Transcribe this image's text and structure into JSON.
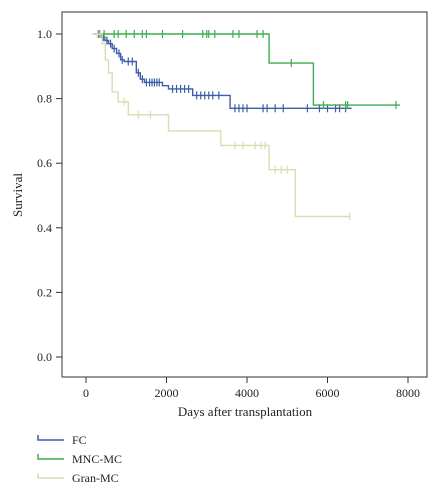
{
  "chart_data": {
    "type": "line",
    "subtype": "kaplan-meier",
    "title": "",
    "xlabel": "Days after transplantation",
    "ylabel": "Survival",
    "xlim": [
      0,
      8000
    ],
    "ylim": [
      0.0,
      1.0
    ],
    "xticks": [
      0,
      2000,
      4000,
      6000,
      8000
    ],
    "xtick_labels": [
      "0",
      "2000",
      "4000",
      "6000",
      "8000"
    ],
    "yticks": [
      0.0,
      0.2,
      0.4,
      0.6,
      0.8,
      1.0
    ],
    "ytick_labels": [
      "0.0",
      "0.2",
      "0.4",
      "0.6",
      "0.8",
      "1.0"
    ],
    "grid": false,
    "legend_position": "bottom-left",
    "series": [
      {
        "name": "FC",
        "color": "#3a5ea8",
        "steps": [
          [
            200,
            1.0
          ],
          [
            380,
            0.99
          ],
          [
            470,
            0.98
          ],
          [
            560,
            0.97
          ],
          [
            650,
            0.955
          ],
          [
            760,
            0.94
          ],
          [
            860,
            0.92
          ],
          [
            950,
            0.915
          ],
          [
            1250,
            0.88
          ],
          [
            1350,
            0.86
          ],
          [
            1450,
            0.85
          ],
          [
            1900,
            0.84
          ],
          [
            2050,
            0.83
          ],
          [
            2650,
            0.81
          ],
          [
            3580,
            0.77
          ],
          [
            6600,
            0.77
          ]
        ],
        "censor_x": [
          320,
          430,
          520,
          610,
          700,
          820,
          900,
          1050,
          1150,
          1300,
          1400,
          1500,
          1580,
          1640,
          1700,
          1760,
          1820,
          2150,
          2250,
          2350,
          2450,
          2550,
          2750,
          2850,
          2950,
          3050,
          3150,
          3300,
          3700,
          3800,
          3900,
          4000,
          4400,
          4500,
          4700,
          4900,
          5500,
          5800,
          6000,
          6200,
          6300,
          6450
        ]
      },
      {
        "name": "MNC-MC",
        "color": "#3cae4c",
        "steps": [
          [
            300,
            1.0
          ],
          [
            4550,
            0.91
          ],
          [
            5650,
            0.78
          ],
          [
            7800,
            0.78
          ]
        ],
        "censor_x": [
          450,
          700,
          800,
          1000,
          1200,
          1400,
          1500,
          1900,
          2400,
          2900,
          3000,
          3050,
          3200,
          3650,
          3800,
          4250,
          4400,
          5100,
          5900,
          6450,
          6500,
          7700
        ]
      },
      {
        "name": "Gran-MC",
        "color": "#dedcae",
        "steps": [
          [
            150,
            1.0
          ],
          [
            400,
            0.97
          ],
          [
            480,
            0.92
          ],
          [
            560,
            0.88
          ],
          [
            650,
            0.82
          ],
          [
            800,
            0.79
          ],
          [
            1050,
            0.75
          ],
          [
            2050,
            0.7
          ],
          [
            3350,
            0.655
          ],
          [
            4550,
            0.58
          ],
          [
            5200,
            0.435
          ],
          [
            6550,
            0.435
          ]
        ],
        "censor_x": [
          280,
          350,
          950,
          1300,
          1600,
          3700,
          3900,
          4200,
          4350,
          4450,
          4700,
          4850,
          5000,
          6550
        ]
      }
    ]
  }
}
